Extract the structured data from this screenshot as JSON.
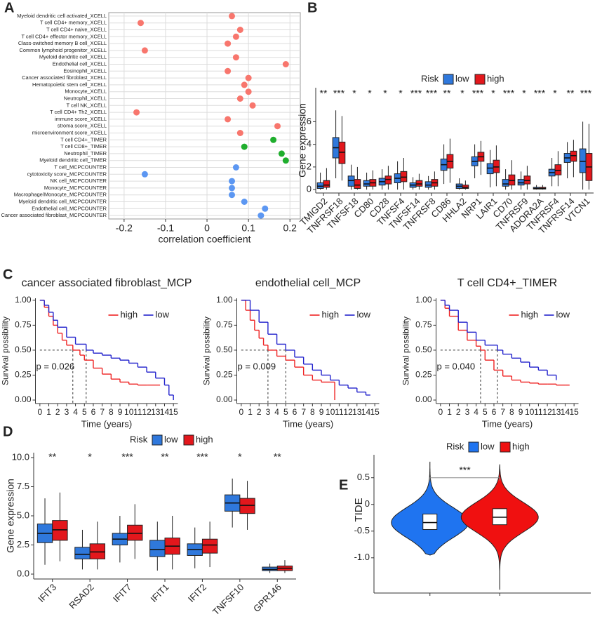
{
  "chart_data": [
    {
      "type": "dot",
      "panel": "A",
      "categories": [
        "Myeloid dendritic cell activated_XCELL",
        "T cell CD4+ memory_XCELL",
        "T cell CD4+ naive_XCELL",
        "T cell CD4+ effector memory_XCELL",
        "Class-switched memory B cell_XCELL",
        "Common lymphoid progenitor_XCELL",
        "Myeloid dendritic cell_XCELL",
        "Endothelial cell_XCELL",
        "Eosinophil_XCELL",
        "Cancer associated fibroblast_XCELL",
        "Hematopoietic stem cell_XCELL",
        "Monocyte_XCELL",
        "Neutrophil_XCELL",
        "T cell NK_XCELL",
        "T cell CD4+ Th2_XCELL",
        "immune score_XCELL",
        "stroma score_XCELL",
        "microenvironment score_XCELL",
        "T cell CD4+_TIMER",
        "T cell CD8+_TIMER",
        "Neutrophil_TIMER",
        "Myeloid dendritic cell_TIMER",
        "T cell_MCPCOUNTER",
        "cytotoxicity score_MCPCOUNTER",
        "NK cell_MCPCOUNTER",
        "Monocyte_MCPCOUNTER",
        "Macrophage/Monocyte_MCPCOUNTER",
        "Myeloid dendritic cell_MCPCOUNTER",
        "Endothelial cell_MCPCOUNTER",
        "Cancer associated fibroblast_MCPCOUNTER"
      ],
      "values": [
        0.06,
        -0.16,
        0.08,
        0.07,
        0.05,
        -0.15,
        0.07,
        0.19,
        0.05,
        0.1,
        0.09,
        0.1,
        0.08,
        0.11,
        -0.17,
        0.05,
        0.17,
        0.08,
        0.16,
        0.09,
        0.18,
        0.19,
        0.07,
        -0.15,
        0.06,
        0.06,
        0.06,
        0.09,
        0.14,
        0.13
      ],
      "colors": [
        "#f8766d",
        "#f8766d",
        "#f8766d",
        "#f8766d",
        "#f8766d",
        "#f8766d",
        "#f8766d",
        "#f8766d",
        "#f8766d",
        "#f8766d",
        "#f8766d",
        "#f8766d",
        "#f8766d",
        "#f8766d",
        "#f8766d",
        "#f8766d",
        "#f8766d",
        "#f8766d",
        "#1fae2d",
        "#1fae2d",
        "#1fae2d",
        "#1fae2d",
        "#5c97f2",
        "#5c97f2",
        "#5c97f2",
        "#5c97f2",
        "#5c97f2",
        "#5c97f2",
        "#5c97f2",
        "#5c97f2"
      ],
      "xlabel": "correlation coefficient",
      "xlim": [
        -0.237,
        0.225
      ],
      "xticks": [
        -0.2,
        -0.1,
        0,
        0.1,
        0.2
      ],
      "grid": true
    },
    {
      "type": "box",
      "panel": "B",
      "ylabel": "Gene expression",
      "legend_title": "Risk",
      "categories": [
        "TMIGD2",
        "TNFRSF18",
        "TNFSF18",
        "CD80",
        "CD28",
        "TNFSF4",
        "TNFSF14",
        "TNFRSF8",
        "CD86",
        "HHLA2",
        "NRP1",
        "LAIR1",
        "CD70",
        "TNFRSF9",
        "ADORA2A",
        "TNFRSF4",
        "TNFRSF14",
        "VTCN1"
      ],
      "significance": [
        "**",
        "***",
        "*",
        "*",
        "*",
        "*",
        "***",
        "***",
        "**",
        "*",
        "***",
        "*",
        "***",
        "*",
        "***",
        "*",
        "**",
        "***"
      ],
      "series": [
        {
          "name": "low",
          "color": "#2f78dc",
          "stats": [
            [
              0,
              0.1,
              0.3,
              0.6,
              1.5
            ],
            [
              1,
              2.8,
              3.7,
              4.6,
              7.0
            ],
            [
              0,
              0.3,
              0.8,
              1.2,
              2.2
            ],
            [
              0,
              0.3,
              0.5,
              0.8,
              1.5
            ],
            [
              0,
              0.4,
              0.7,
              1.0,
              1.8
            ],
            [
              0,
              0.6,
              1.0,
              1.4,
              2.5
            ],
            [
              0,
              0.2,
              0.4,
              0.6,
              1.1
            ],
            [
              0,
              0.2,
              0.4,
              0.7,
              1.2
            ],
            [
              0.5,
              1.7,
              2.2,
              2.7,
              4.0
            ],
            [
              0,
              0.1,
              0.3,
              0.5,
              1.0
            ],
            [
              1,
              2.1,
              2.5,
              2.9,
              4.0
            ],
            [
              0.2,
              1.4,
              1.9,
              2.3,
              3.5
            ],
            [
              0,
              0.3,
              0.5,
              0.9,
              1.8
            ],
            [
              0,
              0.4,
              0.6,
              0.9,
              1.6
            ],
            [
              0,
              0.05,
              0.1,
              0.2,
              0.4
            ],
            [
              0.3,
              1.2,
              1.5,
              1.8,
              2.8
            ],
            [
              1,
              2.4,
              2.8,
              3.2,
              4.2
            ],
            [
              0,
              1.5,
              2.5,
              3.6,
              6.0
            ]
          ]
        },
        {
          "name": "high",
          "color": "#e3171c",
          "stats": [
            [
              0,
              0.2,
              0.4,
              0.8,
              1.9
            ],
            [
              0.8,
              2.3,
              3.3,
              4.2,
              6.5
            ],
            [
              0,
              0.1,
              0.4,
              0.9,
              2.0
            ],
            [
              0,
              0.3,
              0.6,
              0.9,
              1.7
            ],
            [
              0,
              0.5,
              0.9,
              1.2,
              2.1
            ],
            [
              0,
              0.7,
              1.1,
              1.6,
              2.8
            ],
            [
              0,
              0.3,
              0.5,
              0.8,
              1.4
            ],
            [
              0,
              0.3,
              0.6,
              0.9,
              1.6
            ],
            [
              0.6,
              1.9,
              2.5,
              3.1,
              4.5
            ],
            [
              0,
              0.1,
              0.2,
              0.4,
              0.8
            ],
            [
              1.3,
              2.5,
              2.9,
              3.3,
              4.3
            ],
            [
              0.3,
              1.5,
              2.0,
              2.6,
              3.9
            ],
            [
              0,
              0.4,
              0.8,
              1.3,
              2.6
            ],
            [
              0,
              0.5,
              0.8,
              1.2,
              2.1
            ],
            [
              0,
              0.05,
              0.1,
              0.2,
              0.4
            ],
            [
              0.3,
              1.3,
              1.7,
              2.2,
              3.4
            ],
            [
              1.1,
              2.5,
              3.0,
              3.4,
              4.4
            ],
            [
              0,
              0.8,
              2.0,
              3.2,
              5.8
            ]
          ]
        }
      ],
      "ylim": [
        -0.3,
        9.0
      ],
      "yticks": [
        0,
        2,
        4,
        6
      ]
    },
    {
      "type": "km",
      "panel": "C",
      "title": "cancer associated fibroblast_MCP",
      "xlabel": "Time (years)",
      "ylabel": "Survival possibility",
      "annotation": "p = 0.026",
      "median_y": 0.5,
      "median_x": [
        3.7,
        5.2
      ],
      "series": [
        {
          "name": "high",
          "color": "#ee2222",
          "x": [
            0,
            0.5,
            1,
            1.5,
            2,
            2.5,
            3,
            3.7,
            4.5,
            5,
            6,
            7,
            8,
            9,
            10,
            11,
            12,
            13.5
          ],
          "y": [
            1,
            0.93,
            0.84,
            0.75,
            0.67,
            0.6,
            0.55,
            0.5,
            0.45,
            0.4,
            0.32,
            0.26,
            0.21,
            0.18,
            0.16,
            0.15,
            0.15,
            0.15
          ]
        },
        {
          "name": "low",
          "color": "#2222cc",
          "x": [
            0,
            0.5,
            1,
            1.5,
            2,
            3,
            4,
            5.2,
            6,
            7,
            8,
            9,
            10,
            11,
            12,
            13,
            14,
            14.5,
            15
          ],
          "y": [
            1,
            0.95,
            0.88,
            0.8,
            0.73,
            0.63,
            0.56,
            0.5,
            0.47,
            0.45,
            0.42,
            0.4,
            0.37,
            0.33,
            0.28,
            0.22,
            0.15,
            0.05,
            0
          ]
        }
      ],
      "xlim": [
        -0.5,
        15.5
      ],
      "xticks": [
        0,
        1,
        2,
        3,
        4,
        5,
        6,
        7,
        8,
        9,
        10,
        11,
        12,
        13,
        14,
        15
      ],
      "ylim": [
        -0.035,
        1.02
      ],
      "yticks": [
        {
          "value": 0,
          "label": "0.00"
        },
        {
          "value": 0.25,
          "label": "0.25"
        },
        {
          "value": 0.5,
          "label": "0.50"
        },
        {
          "value": 0.75,
          "label": "0.75"
        },
        {
          "value": 1,
          "label": "1.00"
        }
      ]
    },
    {
      "type": "km",
      "title": "endothelial cell_MCP",
      "xlabel": "Time (years)",
      "ylabel": "Survival possibility",
      "annotation": "p = 0.009",
      "median_y": 0.5,
      "median_x": [
        3.0,
        5.0
      ],
      "series": [
        {
          "name": "high",
          "color": "#ee2222",
          "x": [
            0,
            0.5,
            1,
            1.5,
            2,
            2.5,
            3,
            4,
            5,
            6,
            7,
            8,
            9,
            10,
            10.5
          ],
          "y": [
            1,
            0.9,
            0.8,
            0.7,
            0.62,
            0.55,
            0.5,
            0.44,
            0.4,
            0.33,
            0.25,
            0.2,
            0.18,
            0.18,
            0
          ]
        },
        {
          "name": "low",
          "color": "#2222cc",
          "x": [
            0,
            1,
            2,
            3,
            4,
            5,
            6,
            7,
            8,
            9,
            10,
            11,
            12,
            13,
            14,
            14.5
          ],
          "y": [
            1,
            0.9,
            0.78,
            0.66,
            0.56,
            0.5,
            0.43,
            0.36,
            0.3,
            0.25,
            0.2,
            0.15,
            0.12,
            0.08,
            0.05,
            0.05
          ]
        }
      ],
      "xlim": [
        -0.5,
        15.5
      ],
      "xticks": [
        0,
        1,
        2,
        3,
        4,
        5,
        6,
        7,
        8,
        9,
        10,
        11,
        12,
        13,
        14,
        15
      ],
      "ylim": [
        -0.035,
        1.02
      ],
      "yticks": [
        {
          "value": 0,
          "label": "0.00"
        },
        {
          "value": 0.25,
          "label": "0.25"
        },
        {
          "value": 0.5,
          "label": "0.50"
        },
        {
          "value": 0.75,
          "label": "0.75"
        },
        {
          "value": 1,
          "label": "1.00"
        }
      ]
    },
    {
      "type": "km",
      "title": "T cell CD4+_TIMER",
      "xlabel": "Time (years)",
      "ylabel": "Survival possibility",
      "annotation": "p = 0.040",
      "median_y": 0.5,
      "median_x": [
        4.5,
        6.4
      ],
      "series": [
        {
          "name": "high",
          "color": "#ee2222",
          "x": [
            0,
            0.5,
            1,
            2,
            3,
            4,
            4.5,
            5,
            6,
            7,
            8,
            9,
            10,
            11,
            12,
            13,
            14,
            14.5
          ],
          "y": [
            1,
            0.92,
            0.84,
            0.7,
            0.6,
            0.54,
            0.5,
            0.4,
            0.3,
            0.24,
            0.2,
            0.18,
            0.17,
            0.16,
            0.16,
            0.15,
            0.15,
            0.15
          ]
        },
        {
          "name": "low",
          "color": "#2222cc",
          "x": [
            0,
            0.5,
            1,
            2,
            3,
            4,
            5,
            6.4,
            7,
            8,
            9,
            10,
            11,
            12,
            13
          ],
          "y": [
            1,
            0.95,
            0.9,
            0.78,
            0.68,
            0.6,
            0.55,
            0.5,
            0.46,
            0.42,
            0.38,
            0.33,
            0.3,
            0.25,
            0.2
          ]
        }
      ],
      "xlim": [
        -0.5,
        15.5
      ],
      "xticks": [
        0,
        1,
        2,
        3,
        4,
        5,
        6,
        7,
        8,
        9,
        10,
        11,
        12,
        13,
        14,
        15
      ],
      "ylim": [
        -0.035,
        1.02
      ],
      "yticks": [
        {
          "value": 0,
          "label": "0.00"
        },
        {
          "value": 0.25,
          "label": "0.25"
        },
        {
          "value": 0.5,
          "label": "0.50"
        },
        {
          "value": 0.75,
          "label": "0.75"
        },
        {
          "value": 1,
          "label": "1.00"
        }
      ]
    },
    {
      "type": "box",
      "panel": "D",
      "ylabel": "Gene expression",
      "legend_title": "Risk",
      "categories": [
        "IFIT3",
        "RSAD2",
        "IFIT7",
        "IFIT1",
        "IFIT2",
        "TNFSF10",
        "GPR146"
      ],
      "significance": [
        "**",
        "*",
        "***",
        "**",
        "***",
        "*",
        "**"
      ],
      "series": [
        {
          "name": "low",
          "color": "#2f78dc",
          "stats": [
            [
              0.8,
              2.7,
              3.5,
              4.3,
              6.5
            ],
            [
              0.4,
              1.3,
              1.7,
              2.3,
              3.8
            ],
            [
              1.0,
              2.5,
              3.0,
              3.5,
              5.0
            ],
            [
              0.3,
              1.5,
              2.1,
              2.9,
              4.5
            ],
            [
              0.5,
              1.6,
              2.1,
              2.6,
              4.0
            ],
            [
              4.0,
              5.4,
              6.1,
              6.8,
              8.2
            ],
            [
              0.1,
              0.3,
              0.4,
              0.6,
              0.9
            ]
          ]
        },
        {
          "name": "high",
          "color": "#e3171c",
          "stats": [
            [
              1.1,
              2.9,
              3.8,
              4.6,
              7.0
            ],
            [
              0.4,
              1.3,
              1.9,
              2.6,
              4.5
            ],
            [
              1.3,
              2.9,
              3.5,
              4.2,
              6.0
            ],
            [
              0.4,
              1.7,
              2.4,
              3.1,
              5.0
            ],
            [
              0.6,
              1.8,
              2.5,
              3.0,
              4.5
            ],
            [
              3.8,
              5.2,
              5.9,
              6.5,
              8.0
            ],
            [
              0.1,
              0.3,
              0.5,
              0.7,
              1.2
            ]
          ]
        }
      ],
      "ylim": [
        -0.42,
        10.42
      ],
      "yticks": [
        {
          "value": 0,
          "label": "0.0"
        },
        {
          "value": 2.5,
          "label": "2.5"
        },
        {
          "value": 5,
          "label": "5.0"
        },
        {
          "value": 7.5,
          "label": "7.5"
        },
        {
          "value": 10,
          "label": "10.0"
        }
      ]
    },
    {
      "type": "violin",
      "panel": "E",
      "ylabel": "TIDE",
      "legend_title": "Risk",
      "significance": "***",
      "series": [
        {
          "name": "low",
          "color": "#1f74f0",
          "range": [
            -0.95,
            0.8
          ],
          "box": [
            -0.47,
            -0.34,
            -0.18
          ]
        },
        {
          "name": "high",
          "color": "#f01010",
          "range": [
            -1.6,
            0.75
          ],
          "box": [
            -0.38,
            -0.24,
            -0.08
          ]
        }
      ],
      "ylim": [
        -1.66,
        0.93
      ],
      "yticks": [
        0.5,
        0,
        -0.5,
        {
          "value": -1,
          "label": "-1.0"
        }
      ]
    }
  ]
}
